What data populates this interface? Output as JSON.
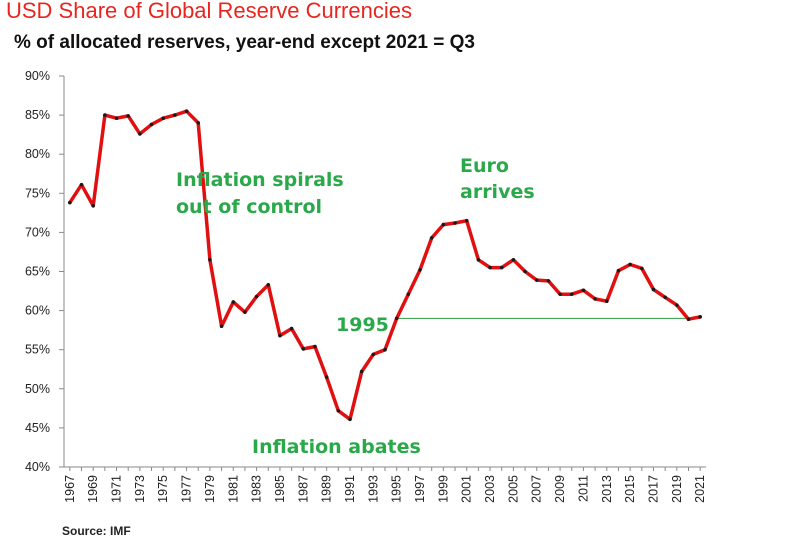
{
  "title": "USD Share of Global  Reserve Currencies",
  "subtitle": "% of allocated reserves, year-end except 2021 = Q3",
  "source": "Source: IMF",
  "colors": {
    "title": "#e8261f",
    "line": "#e01010",
    "annotation": "#2aa84a",
    "reference_line": "#2e9c45"
  },
  "chart_data": {
    "type": "line",
    "grid": false,
    "ylim": [
      40,
      90
    ],
    "y_ticks": [
      "40%",
      "45%",
      "50%",
      "55%",
      "60%",
      "65%",
      "70%",
      "75%",
      "80%",
      "85%",
      "90%"
    ],
    "x_ticks": [
      "1967",
      "1969",
      "1971",
      "1973",
      "1975",
      "1977",
      "1979",
      "1981",
      "1983",
      "1985",
      "1987",
      "1989",
      "1991",
      "1993",
      "1995",
      "1997",
      "1999",
      "2001",
      "2003",
      "2005",
      "2007",
      "2009",
      "2011",
      "2013",
      "2015",
      "2017",
      "2019",
      "2021"
    ],
    "x": [
      1967,
      1968,
      1969,
      1970,
      1971,
      1972,
      1973,
      1974,
      1975,
      1976,
      1977,
      1978,
      1979,
      1980,
      1981,
      1982,
      1983,
      1984,
      1985,
      1986,
      1987,
      1988,
      1989,
      1990,
      1991,
      1992,
      1993,
      1994,
      1995,
      1996,
      1997,
      1998,
      1999,
      2000,
      2001,
      2002,
      2003,
      2004,
      2005,
      2006,
      2007,
      2008,
      2009,
      2010,
      2011,
      2012,
      2013,
      2014,
      2015,
      2016,
      2017,
      2018,
      2019,
      2020,
      2021
    ],
    "values": [
      73.8,
      76.1,
      73.4,
      85.0,
      84.6,
      84.9,
      82.6,
      83.8,
      84.6,
      85.0,
      85.5,
      84.0,
      66.5,
      58.0,
      61.1,
      59.8,
      61.8,
      63.3,
      56.8,
      57.7,
      55.1,
      55.4,
      51.5,
      47.2,
      46.1,
      52.2,
      54.4,
      55.0,
      59.0,
      62.1,
      65.2,
      69.3,
      71.0,
      71.2,
      71.5,
      66.5,
      65.5,
      65.5,
      66.5,
      65.0,
      63.9,
      63.8,
      62.1,
      62.1,
      62.6,
      61.5,
      61.2,
      65.1,
      65.9,
      65.4,
      62.7,
      61.7,
      60.7,
      58.9,
      59.2
    ],
    "annotations": [
      {
        "lines": [
          "Inflation spirals",
          "out of control"
        ]
      },
      {
        "lines": [
          "Euro",
          "arrives"
        ]
      },
      {
        "lines": [
          "1995"
        ]
      },
      {
        "lines": [
          "Inflation abates"
        ]
      }
    ]
  }
}
